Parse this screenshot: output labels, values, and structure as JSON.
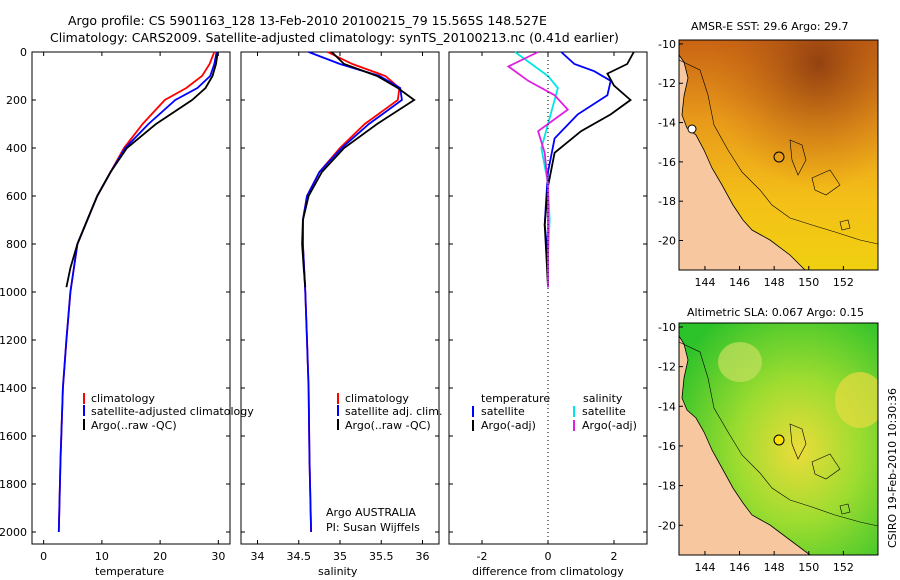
{
  "header": {
    "line1": "Argo profile: CS 5901163_128 13-Feb-2010 20100215_79 15.565S 148.527E",
    "line2": "Climatology: CARS2009. Satellite-adjusted climatology: synTS_20100213.nc (0.41d earlier)"
  },
  "footer": {
    "argo_group": "Argo AUSTRALIA",
    "pi": "PI: Susan Wijffels",
    "stamp": "CSIRO 19-Feb-2010 10:30:36"
  },
  "colors": {
    "climatology": "#ff0000",
    "satellite": "#0000ff",
    "argo": "#000000",
    "sat_sal": "#00e5e5",
    "argo_sal": "#e020e0"
  },
  "chart_data": [
    {
      "type": "line",
      "id": "temperature",
      "xlabel": "temperature",
      "ylabel": "",
      "xlim": [
        -2,
        32
      ],
      "ylim": [
        2050,
        0
      ],
      "xticks": [
        "0",
        "10",
        "20",
        "30"
      ],
      "yticks": [
        "0",
        "200",
        "400",
        "600",
        "800",
        "1000",
        "1200",
        "1400",
        "1600",
        "1800",
        "2000"
      ],
      "legend": [
        "climatology",
        "satellite-adjusted climatology",
        "Argo(..raw -QC)"
      ],
      "series": [
        {
          "name": "climatology",
          "color": "#ff0000",
          "x": [
            29.3,
            28.5,
            27.2,
            24.5,
            20.8,
            17.0,
            13.8,
            11.5,
            9.2,
            7.5,
            5.8,
            4.6,
            3.9,
            3.3,
            2.9,
            2.6
          ],
          "y": [
            0,
            50,
            100,
            150,
            200,
            300,
            400,
            500,
            600,
            700,
            800,
            1000,
            1200,
            1400,
            1700,
            2000
          ]
        },
        {
          "name": "satellite-adjusted climatology",
          "color": "#0000ff",
          "x": [
            29.7,
            29.3,
            28.6,
            26.4,
            22.6,
            18.0,
            14.0,
            11.5,
            9.2,
            7.5,
            5.8,
            4.6,
            3.9,
            3.3,
            2.9,
            2.6
          ],
          "y": [
            0,
            50,
            100,
            150,
            200,
            300,
            400,
            500,
            600,
            700,
            800,
            1000,
            1200,
            1400,
            1700,
            2000
          ]
        },
        {
          "name": "Argo(..raw -QC)",
          "color": "#000000",
          "x": [
            29.9,
            29.6,
            29.0,
            27.8,
            25.5,
            19.3,
            14.3,
            11.5,
            9.2,
            7.5,
            5.8,
            4.6,
            3.9
          ],
          "y": [
            0,
            50,
            100,
            150,
            200,
            300,
            400,
            500,
            600,
            700,
            800,
            900,
            980
          ]
        }
      ]
    },
    {
      "type": "line",
      "id": "salinity",
      "xlabel": "salinity",
      "xlim": [
        33.8,
        36.2
      ],
      "ylim": [
        2050,
        0
      ],
      "xticks": [
        "34",
        "34.5",
        "35",
        "35.5",
        "36"
      ],
      "legend": [
        "climatology",
        "satellite adj. clim.",
        "Argo(..raw -QC)"
      ],
      "series": [
        {
          "name": "climatology",
          "color": "#ff0000",
          "x": [
            34.85,
            35.15,
            35.55,
            35.72,
            35.7,
            35.3,
            35.0,
            34.75,
            34.6,
            34.55,
            34.55,
            34.58,
            34.6,
            34.62,
            34.63,
            34.65
          ],
          "y": [
            0,
            50,
            100,
            150,
            200,
            300,
            400,
            500,
            600,
            700,
            800,
            1000,
            1200,
            1400,
            1700,
            2000
          ]
        },
        {
          "name": "satellite adj. clim.",
          "color": "#0000ff",
          "x": [
            34.62,
            35.0,
            35.48,
            35.73,
            35.75,
            35.35,
            35.02,
            34.75,
            34.6,
            34.55,
            34.55,
            34.58,
            34.6,
            34.62,
            34.63,
            34.65
          ],
          "y": [
            0,
            50,
            100,
            150,
            200,
            300,
            400,
            500,
            600,
            700,
            800,
            1000,
            1200,
            1400,
            1700,
            2000
          ]
        },
        {
          "name": "Argo(..raw -QC)",
          "color": "#000000",
          "x": [
            34.9,
            35.05,
            35.45,
            35.7,
            35.9,
            35.45,
            35.05,
            34.78,
            34.62,
            34.55,
            34.54,
            34.56,
            34.58
          ],
          "y": [
            0,
            50,
            100,
            150,
            200,
            300,
            400,
            500,
            600,
            700,
            800,
            900,
            980
          ]
        }
      ]
    },
    {
      "type": "line",
      "id": "difference",
      "xlabel": "difference from climatology",
      "xlim": [
        -3,
        3
      ],
      "ylim": [
        2050,
        0
      ],
      "xticks": [
        "-2",
        "0",
        "2"
      ],
      "legend_left": {
        "title": "temperature",
        "items": [
          "satellite",
          "Argo(-adj)"
        ]
      },
      "legend_right": {
        "title": "salinity",
        "items": [
          "satellite",
          "Argo(-adj)"
        ]
      },
      "series": [
        {
          "name": "temperature satellite",
          "color": "#0000ff",
          "x": [
            0.4,
            0.8,
            1.4,
            1.9,
            1.8,
            0.9,
            0.2,
            0.0,
            -0.05,
            -0.1,
            0.0,
            0.0
          ],
          "y": [
            0,
            50,
            80,
            120,
            180,
            260,
            360,
            500,
            600,
            720,
            850,
            980
          ]
        },
        {
          "name": "temperature Argo(-adj)",
          "color": "#000000",
          "x": [
            2.6,
            2.4,
            1.8,
            2.0,
            2.5,
            1.9,
            1.0,
            0.2,
            0.0,
            -0.1,
            -0.05,
            0.0
          ],
          "y": [
            0,
            50,
            90,
            140,
            200,
            260,
            330,
            420,
            560,
            720,
            850,
            980
          ]
        },
        {
          "name": "salinity satellite",
          "color": "#00e5e5",
          "x": [
            -1.0,
            -0.5,
            0.0,
            0.3,
            0.1,
            -0.2,
            0.0,
            0.05,
            0.0,
            0.0
          ],
          "y": [
            0,
            50,
            100,
            150,
            250,
            400,
            550,
            700,
            850,
            980
          ]
        },
        {
          "name": "salinity Argo(-adj)",
          "color": "#e020e0",
          "x": [
            -0.3,
            -1.2,
            -0.6,
            0.2,
            0.6,
            -0.3,
            -0.1,
            0.0,
            0.0
          ],
          "y": [
            0,
            60,
            120,
            180,
            240,
            330,
            420,
            560,
            980
          ]
        }
      ]
    },
    {
      "type": "heatmap",
      "id": "sst_map",
      "title": "AMSR-E SST: 29.6 Argo: 29.7",
      "xlim": [
        142.5,
        154
      ],
      "ylim": [
        -21.5,
        -9.8
      ],
      "xticks": [
        "144",
        "146",
        "148",
        "150",
        "152"
      ],
      "yticks": [
        "-10",
        "-12",
        "-14",
        "-16",
        "-18",
        "-20"
      ],
      "argo_position": {
        "lon": 148.527,
        "lat": -15.565
      }
    },
    {
      "type": "heatmap",
      "id": "sla_map",
      "title": "Altimetric SLA: 0.067 Argo: 0.15",
      "xlim": [
        142.5,
        154
      ],
      "ylim": [
        -21.5,
        -9.8
      ],
      "xticks": [
        "144",
        "146",
        "148",
        "150",
        "152"
      ],
      "yticks": [
        "-10",
        "-12",
        "-14",
        "-16",
        "-18",
        "-20"
      ],
      "argo_position": {
        "lon": 148.527,
        "lat": -15.565
      }
    }
  ]
}
